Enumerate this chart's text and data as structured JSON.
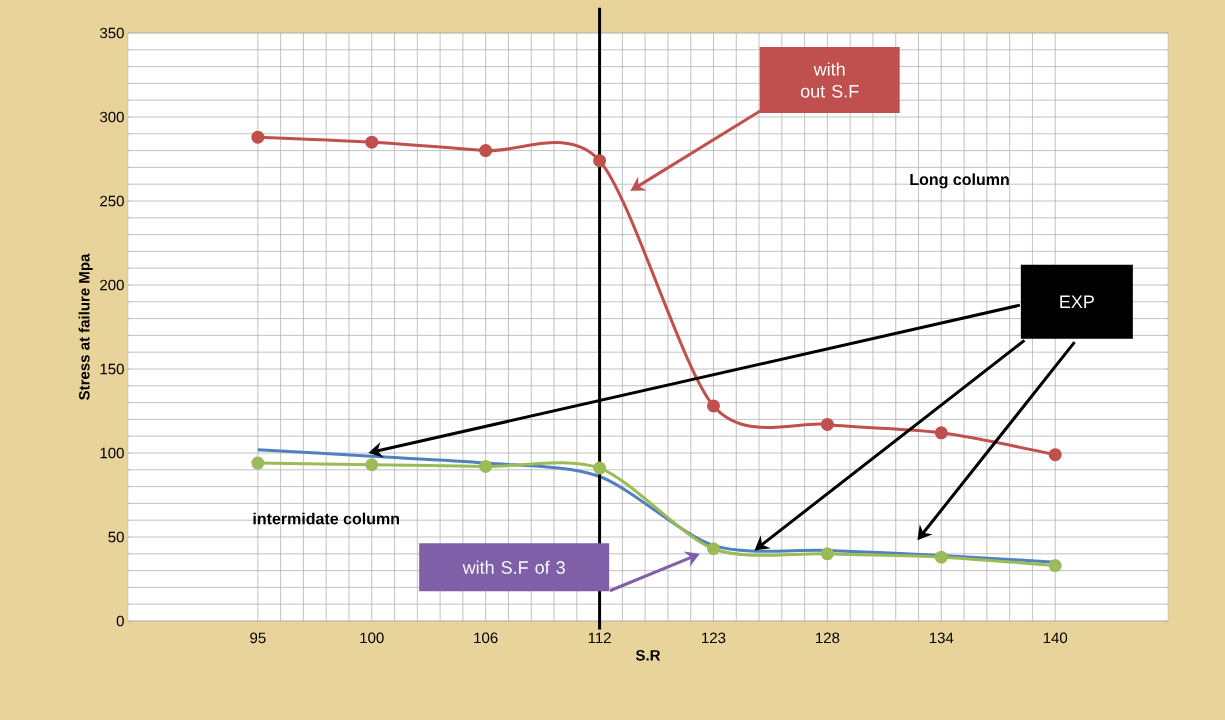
{
  "chart_data": {
    "type": "line",
    "xlabel": "S.R",
    "ylabel": "Stress at failure Mpa",
    "categories": [
      "95",
      "100",
      "106",
      "112",
      "123",
      "128",
      "134",
      "140"
    ],
    "series": [
      {
        "color": "#c0504d",
        "marker": "circle",
        "values": [
          288,
          285,
          280,
          274,
          128,
          117,
          112,
          99
        ]
      },
      {
        "color": "#4f81bd",
        "marker": "none",
        "values": [
          102,
          98,
          94,
          86,
          45,
          42,
          39,
          35
        ]
      },
      {
        "color": "#9bbb59",
        "marker": "circle",
        "values": [
          94,
          93,
          92,
          91,
          43,
          40,
          38,
          33
        ]
      }
    ],
    "ylim": [
      0,
      350
    ],
    "yticks": [
      0,
      50,
      100,
      150,
      200,
      250,
      300,
      350
    ],
    "grid": true,
    "ref_lines": [
      {
        "axis": "x",
        "value": "112",
        "color": "#000000"
      }
    ],
    "annotations": [
      "with out S.F",
      "Long column",
      "EXP",
      "intermidate column",
      "with S.F of 3"
    ]
  }
}
